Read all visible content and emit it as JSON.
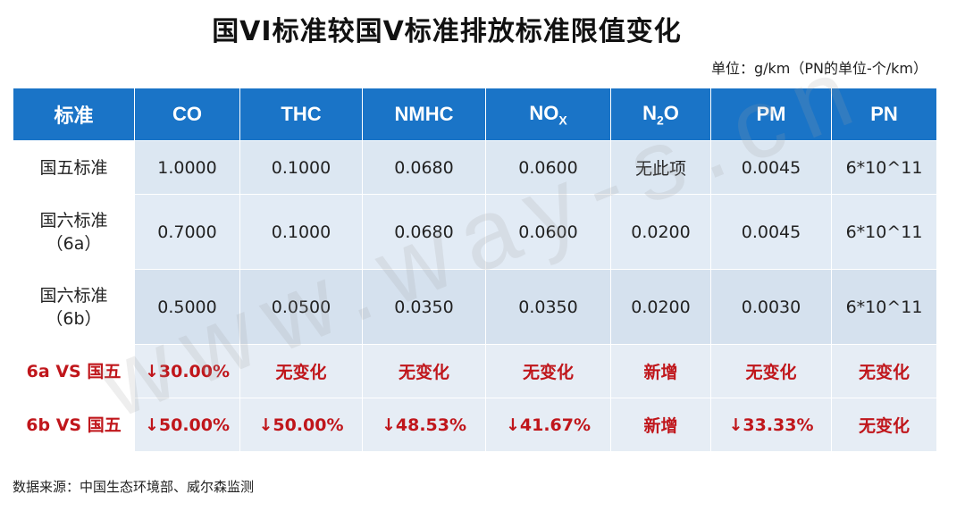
{
  "title": "国VI标准较国V标准排放标准限值变化",
  "unit_note": "单位：g/km（PN的单位-个/km）",
  "watermark": "www.way-s.cn",
  "table": {
    "headers": {
      "c0": "标准",
      "c1": "CO",
      "c2": "THC",
      "c3": "NMHC",
      "c4_main": "NO",
      "c4_sub": "X",
      "c5_pre": "N",
      "c5_sub": "2",
      "c5_post": "O",
      "c6": "PM",
      "c7": "PN"
    },
    "rows": [
      {
        "label_line1": "国五标准",
        "label_line2": "",
        "values": [
          "1.0000",
          "0.1000",
          "0.0680",
          "0.0600",
          "无此项",
          "0.0045",
          "6*10^11"
        ]
      },
      {
        "label_line1": "国六标准",
        "label_line2": "（6a）",
        "values": [
          "0.7000",
          "0.1000",
          "0.0680",
          "0.0600",
          "0.0200",
          "0.0045",
          "6*10^11"
        ]
      },
      {
        "label_line1": "国六标准",
        "label_line2": "（6b）",
        "values": [
          "0.5000",
          "0.0500",
          "0.0350",
          "0.0350",
          "0.0200",
          "0.0030",
          "6*10^11"
        ]
      },
      {
        "label_line1": "6a VS 国五",
        "label_line2": "",
        "values": [
          "↓30.00%",
          "无变化",
          "无变化",
          "无变化",
          "新增",
          "无变化",
          "无变化"
        ]
      },
      {
        "label_line1": "6b VS 国五",
        "label_line2": "",
        "values": [
          "↓50.00%",
          "↓50.00%",
          "↓48.53%",
          "↓41.67%",
          "新增",
          "↓33.33%",
          "无变化"
        ]
      }
    ]
  },
  "source": "数据来源：中国生态环境部、威尔森监测"
}
